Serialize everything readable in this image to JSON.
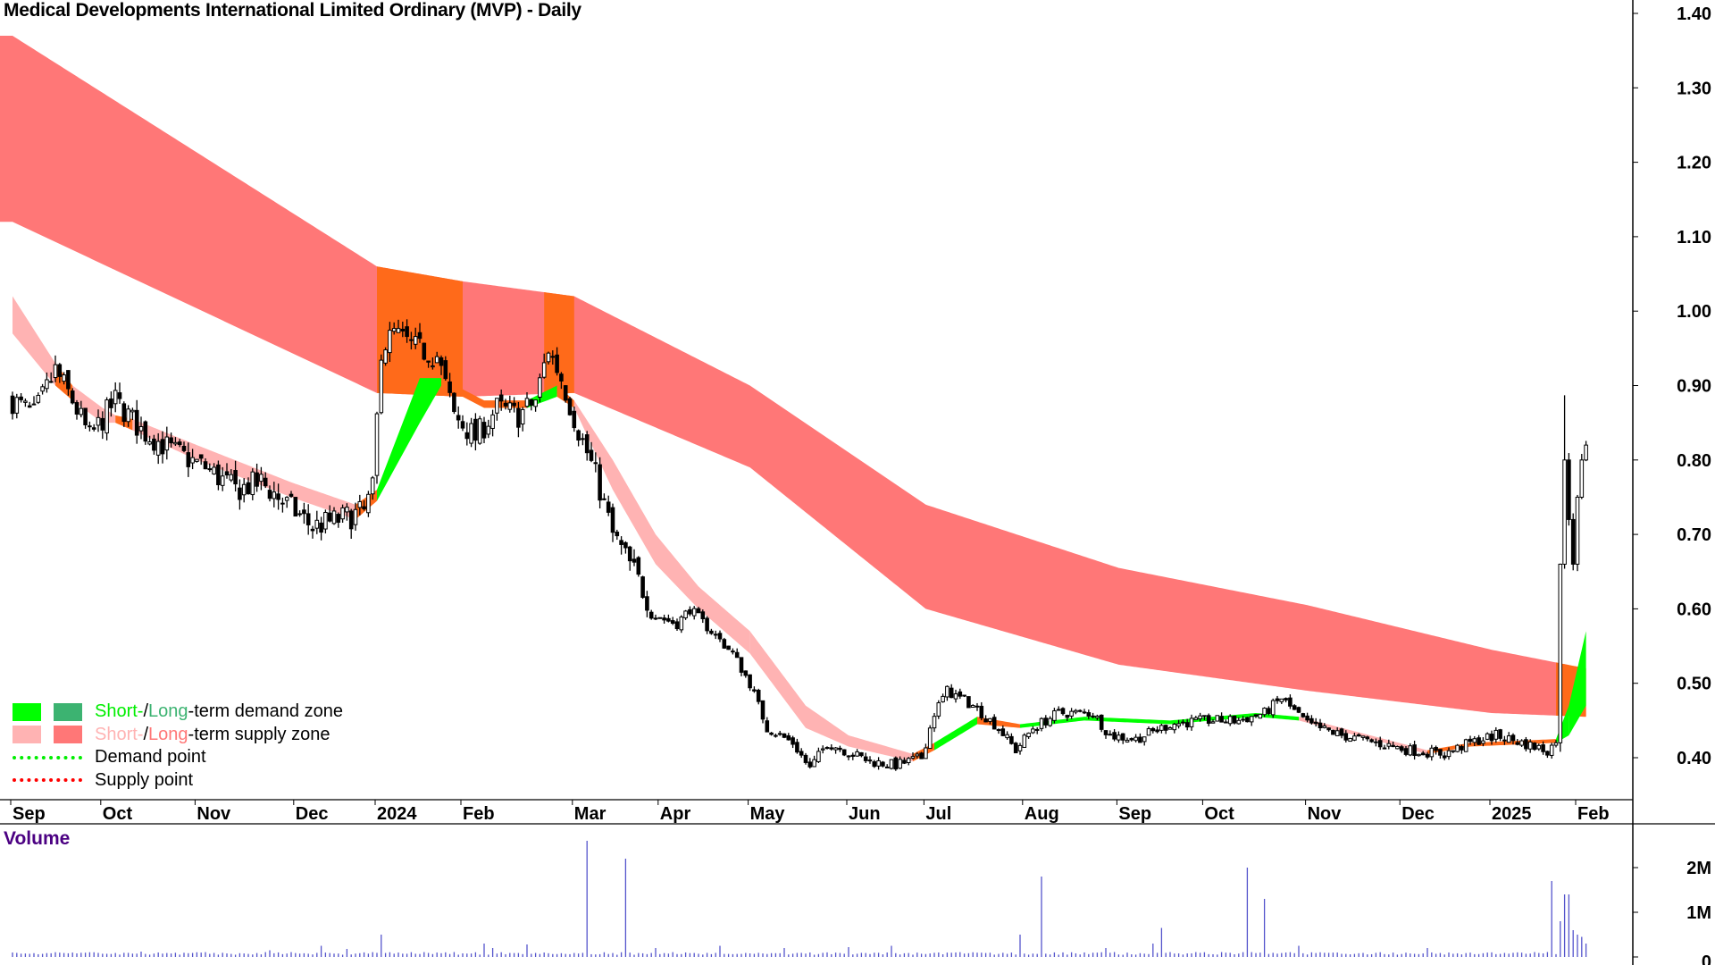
{
  "title": "Medical Developments International Limited Ordinary (MVP) - Daily",
  "volume_label": "Volume",
  "colors": {
    "short_demand": "#00ff00",
    "long_demand": "#3cb371",
    "short_supply": "#ffb3b3",
    "long_supply": "#ff7777",
    "overlap": "#ff6a1a",
    "demand_point": "#00ee00",
    "supply_point": "#ff0000",
    "volume": "#5555cc"
  },
  "legend": {
    "demand": {
      "short": "Short-",
      "sep": " / ",
      "long": "Long",
      "rest": "-term demand zone"
    },
    "supply": {
      "short": "Short-",
      "sep": " / ",
      "long": "Long",
      "rest": "-term supply zone"
    },
    "demand_point": "Demand point",
    "supply_point": "Supply point"
  },
  "chart_data": {
    "type": "candlestick",
    "title": "Medical Developments International Limited Ordinary (MVP) - Daily",
    "x_unit": "trading days from start of Sep 2023",
    "price_axis": {
      "ylim": [
        0.35,
        1.42
      ],
      "ticks": [
        "1.40",
        "1.30",
        "1.20",
        "1.10",
        "1.00",
        "0.90",
        "0.80",
        "0.70",
        "0.60",
        "0.50",
        "0.40"
      ]
    },
    "volume_axis": {
      "ticks": [
        {
          "label": "2M",
          "value": 2
        },
        {
          "label": "1M",
          "value": 1
        },
        {
          "label": "0",
          "value": 0
        }
      ],
      "unit": "M"
    },
    "months": [
      {
        "label": "Sep",
        "day": 0
      },
      {
        "label": "Oct",
        "day": 21
      },
      {
        "label": "Nov",
        "day": 43
      },
      {
        "label": "Dec",
        "day": 66
      },
      {
        "label": "2024",
        "day": 85
      },
      {
        "label": "Feb",
        "day": 105
      },
      {
        "label": "Mar",
        "day": 131
      },
      {
        "label": "Apr",
        "day": 151
      },
      {
        "label": "May",
        "day": 172
      },
      {
        "label": "Jun",
        "day": 195
      },
      {
        "label": "Jul",
        "day": 213
      },
      {
        "label": "Aug",
        "day": 236
      },
      {
        "label": "Sep",
        "day": 258
      },
      {
        "label": "Oct",
        "day": 278
      },
      {
        "label": "Nov",
        "day": 302
      },
      {
        "label": "Dec",
        "day": 324
      },
      {
        "label": "2025",
        "day": 345
      },
      {
        "label": "Feb",
        "day": 365
      }
    ],
    "close_anchors": [
      [
        0,
        0.88
      ],
      [
        5,
        0.86
      ],
      [
        10,
        0.92
      ],
      [
        14,
        0.88
      ],
      [
        18,
        0.83
      ],
      [
        24,
        0.88
      ],
      [
        30,
        0.84
      ],
      [
        38,
        0.81
      ],
      [
        45,
        0.79
      ],
      [
        52,
        0.76
      ],
      [
        58,
        0.77
      ],
      [
        64,
        0.74
      ],
      [
        70,
        0.71
      ],
      [
        76,
        0.72
      ],
      [
        82,
        0.73
      ],
      [
        84,
        0.76
      ],
      [
        86,
        0.95
      ],
      [
        89,
        0.97
      ],
      [
        94,
        0.95
      ],
      [
        99,
        0.94
      ],
      [
        103,
        0.86
      ],
      [
        108,
        0.83
      ],
      [
        113,
        0.87
      ],
      [
        118,
        0.86
      ],
      [
        122,
        0.88
      ],
      [
        125,
        0.95
      ],
      [
        128,
        0.91
      ],
      [
        132,
        0.84
      ],
      [
        136,
        0.78
      ],
      [
        140,
        0.7
      ],
      [
        145,
        0.65
      ],
      [
        150,
        0.59
      ],
      [
        155,
        0.58
      ],
      [
        158,
        0.6
      ],
      [
        163,
        0.57
      ],
      [
        168,
        0.54
      ],
      [
        172,
        0.5
      ],
      [
        176,
        0.44
      ],
      [
        182,
        0.42
      ],
      [
        186,
        0.385
      ],
      [
        190,
        0.42
      ],
      [
        194,
        0.41
      ],
      [
        200,
        0.395
      ],
      [
        206,
        0.39
      ],
      [
        212,
        0.4
      ],
      [
        215,
        0.46
      ],
      [
        218,
        0.49
      ],
      [
        224,
        0.47
      ],
      [
        230,
        0.44
      ],
      [
        234,
        0.41
      ],
      [
        238,
        0.44
      ],
      [
        244,
        0.46
      ],
      [
        252,
        0.46
      ],
      [
        256,
        0.43
      ],
      [
        262,
        0.425
      ],
      [
        270,
        0.445
      ],
      [
        278,
        0.45
      ],
      [
        286,
        0.45
      ],
      [
        292,
        0.46
      ],
      [
        296,
        0.48
      ],
      [
        302,
        0.445
      ],
      [
        310,
        0.43
      ],
      [
        318,
        0.42
      ],
      [
        326,
        0.41
      ],
      [
        334,
        0.405
      ],
      [
        340,
        0.42
      ],
      [
        346,
        0.43
      ],
      [
        352,
        0.42
      ],
      [
        358,
        0.41
      ],
      [
        360,
        0.42
      ],
      [
        361,
        0.66
      ],
      [
        362,
        0.8
      ],
      [
        363,
        0.72
      ],
      [
        364,
        0.66
      ],
      [
        365,
        0.75
      ],
      [
        366,
        0.8
      ],
      [
        367,
        0.82
      ]
    ],
    "long_term_band": [
      [
        0,
        1.37,
        1.12
      ],
      [
        85,
        1.06,
        0.89
      ],
      [
        105,
        1.04,
        0.885
      ],
      [
        131,
        1.02,
        0.89
      ],
      [
        172,
        0.9,
        0.79
      ],
      [
        213,
        0.74,
        0.6
      ],
      [
        258,
        0.655,
        0.525
      ],
      [
        302,
        0.605,
        0.49
      ],
      [
        345,
        0.545,
        0.46
      ],
      [
        367,
        0.52,
        0.455
      ]
    ],
    "overlap_ranges": [
      [
        85,
        105
      ],
      [
        124,
        131
      ],
      [
        360,
        367
      ]
    ],
    "short_term_band": [
      [
        0,
        1.02,
        0.97,
        "supply"
      ],
      [
        10,
        0.93,
        0.9,
        "mixed"
      ],
      [
        14,
        0.9,
        0.88,
        "supply"
      ],
      [
        21,
        0.87,
        0.85,
        "supply"
      ],
      [
        24,
        0.86,
        0.85,
        "mixed"
      ],
      [
        28,
        0.855,
        0.84,
        "supply"
      ],
      [
        43,
        0.82,
        0.8,
        "supply"
      ],
      [
        65,
        0.77,
        0.75,
        "supply"
      ],
      [
        80,
        0.74,
        0.72,
        "mixed"
      ],
      [
        85,
        0.76,
        0.745,
        "demand"
      ],
      [
        95,
        0.91,
        0.85,
        "demand"
      ],
      [
        100,
        0.91,
        0.9,
        "mixed"
      ],
      [
        110,
        0.88,
        0.87,
        "mixed"
      ],
      [
        120,
        0.88,
        0.87,
        "demand"
      ],
      [
        127,
        0.9,
        0.885,
        "mixed"
      ],
      [
        131,
        0.88,
        0.87,
        "supply"
      ],
      [
        140,
        0.8,
        0.76,
        "supply"
      ],
      [
        150,
        0.7,
        0.66,
        "supply"
      ],
      [
        160,
        0.63,
        0.6,
        "supply"
      ],
      [
        172,
        0.57,
        0.54,
        "supply"
      ],
      [
        185,
        0.47,
        0.44,
        "supply"
      ],
      [
        195,
        0.43,
        0.415,
        "supply"
      ],
      [
        210,
        0.405,
        0.395,
        "mixed"
      ],
      [
        215,
        0.42,
        0.41,
        "demand"
      ],
      [
        225,
        0.455,
        0.445,
        "mixed"
      ],
      [
        235,
        0.445,
        0.44,
        "demand"
      ],
      [
        250,
        0.455,
        0.45,
        "demand"
      ],
      [
        270,
        0.45,
        0.445,
        "demand"
      ],
      [
        290,
        0.46,
        0.455,
        "demand"
      ],
      [
        300,
        0.455,
        0.45,
        "supply"
      ],
      [
        320,
        0.425,
        0.42,
        "supply"
      ],
      [
        330,
        0.41,
        0.405,
        "mixed"
      ],
      [
        340,
        0.42,
        0.415,
        "mixed"
      ],
      [
        360,
        0.425,
        0.42,
        "demand"
      ],
      [
        363,
        0.47,
        0.43,
        "demand"
      ],
      [
        367,
        0.57,
        0.47,
        "demand"
      ]
    ],
    "volume_spikes_millions": [
      [
        30,
        0.12
      ],
      [
        60,
        0.15
      ],
      [
        72,
        0.25
      ],
      [
        78,
        0.18
      ],
      [
        86,
        0.5
      ],
      [
        110,
        0.3
      ],
      [
        112,
        0.2
      ],
      [
        120,
        0.28
      ],
      [
        134,
        2.6
      ],
      [
        143,
        2.2
      ],
      [
        150,
        0.2
      ],
      [
        165,
        0.25
      ],
      [
        180,
        0.2
      ],
      [
        195,
        0.22
      ],
      [
        205,
        0.25
      ],
      [
        235,
        0.5
      ],
      [
        240,
        1.8
      ],
      [
        255,
        0.2
      ],
      [
        266,
        0.3
      ],
      [
        268,
        0.65
      ],
      [
        288,
        2.0
      ],
      [
        292,
        1.3
      ],
      [
        300,
        0.25
      ],
      [
        330,
        0.2
      ],
      [
        359,
        1.7
      ],
      [
        361,
        0.8
      ],
      [
        362,
        1.4
      ],
      [
        363,
        1.4
      ],
      [
        364,
        0.6
      ],
      [
        365,
        0.5
      ],
      [
        366,
        0.45
      ],
      [
        367,
        0.3
      ]
    ]
  }
}
